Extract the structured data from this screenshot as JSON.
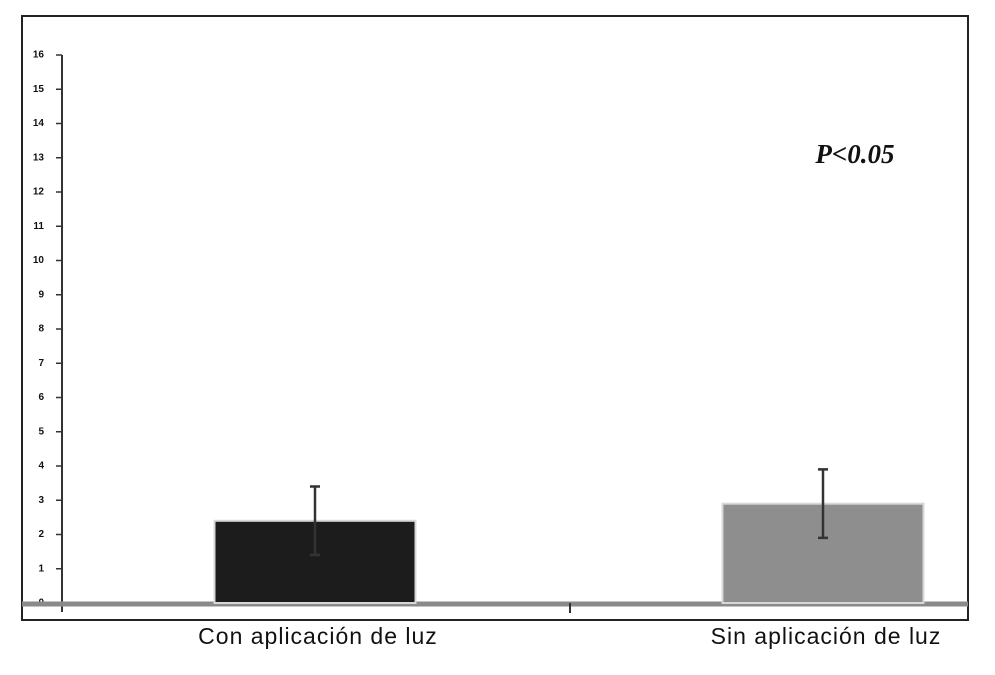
{
  "chart_data": {
    "type": "bar",
    "annotation": "P<0.05",
    "categories": [
      "Con aplicación de luz",
      "Sin aplicación de luz"
    ],
    "values": [
      2.4,
      2.9
    ],
    "errors": [
      1.0,
      1.0
    ],
    "colors": [
      "#1c1c1c",
      "#8e8e8e"
    ],
    "ylim": [
      0,
      16
    ],
    "yticks": [
      0,
      1,
      2,
      3,
      4,
      5,
      6,
      7,
      8,
      9,
      10,
      11,
      12,
      13,
      14,
      15,
      16
    ]
  }
}
